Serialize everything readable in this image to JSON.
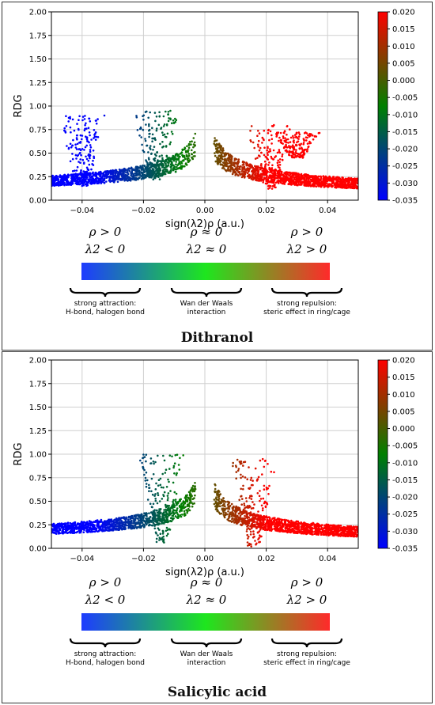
{
  "chart_data": [
    {
      "type": "scatter",
      "title": "Dithranol",
      "xlabel": "sign(λ2)ρ (a.u.)",
      "ylabel": "RDG",
      "xlim": [
        -0.05,
        0.05
      ],
      "ylim": [
        0,
        2
      ],
      "x_ticks": [
        "−0.04",
        "−0.02",
        "0.00",
        "0.02",
        "0.04"
      ],
      "y_ticks": [
        "0.00",
        "0.25",
        "0.50",
        "0.75",
        "1.00",
        "1.25",
        "1.50",
        "1.75",
        "2.00"
      ],
      "grid": true,
      "colorbar": {
        "range": [
          -0.035,
          0.02
        ],
        "ticks": [
          "0.020",
          "0.015",
          "0.010",
          "0.005",
          "0.000",
          "-0.005",
          "-0.010",
          "-0.015",
          "-0.020",
          "-0.025",
          "-0.030",
          "-0.035"
        ],
        "colors": [
          "#0000ff",
          "#008000",
          "#ff0000"
        ]
      },
      "spikes": [
        {
          "x": -0.04,
          "ymin": 0.15,
          "ymax": 0.9
        },
        {
          "x": -0.016,
          "ymin": 0.22,
          "ymax": 0.95
        },
        {
          "x": 0.021,
          "ymin": 0.12,
          "ymax": 0.8
        },
        {
          "x": 0.03,
          "ymin": 0.45,
          "ymax": 0.72
        }
      ],
      "legend": {
        "labels": [
          {
            "rho": "ρ > 0",
            "lambda": "λ2 < 0"
          },
          {
            "rho": "ρ ≈ 0",
            "lambda": "λ2 ≈ 0"
          },
          {
            "rho": "ρ > 0",
            "lambda": "λ2 > 0"
          }
        ],
        "braces": [
          {
            "line1": "strong attraction:",
            "line2": "H-bond, halogen bond"
          },
          {
            "line1": "Wan der Waals",
            "line2": "interaction"
          },
          {
            "line1": "strong repulsion:",
            "line2": "steric effect in ring/cage"
          }
        ]
      }
    },
    {
      "type": "scatter",
      "title": "Salicylic acid",
      "xlabel": "sign(λ2)ρ (a.u.)",
      "ylabel": "RDG",
      "xlim": [
        -0.05,
        0.05
      ],
      "ylim": [
        0,
        2
      ],
      "x_ticks": [
        "−0.04",
        "−0.02",
        "0.00",
        "0.02",
        "0.04"
      ],
      "y_ticks": [
        "0.00",
        "0.25",
        "0.50",
        "0.75",
        "1.00",
        "1.25",
        "1.50",
        "1.75",
        "2.00"
      ],
      "grid": true,
      "colorbar": {
        "range": [
          -0.035,
          0.02
        ],
        "ticks": [
          "0.020",
          "0.015",
          "0.010",
          "0.005",
          "0.000",
          "-0.005",
          "-0.010",
          "-0.015",
          "-0.020",
          "-0.025",
          "-0.030",
          "-0.035"
        ],
        "colors": [
          "#0000ff",
          "#008000",
          "#ff0000"
        ]
      },
      "spikes": [
        {
          "x": -0.014,
          "ymin": 0.05,
          "ymax": 1.0
        },
        {
          "x": 0.016,
          "ymin": 0.02,
          "ymax": 0.95
        }
      ],
      "legend": {
        "labels": [
          {
            "rho": "ρ > 0",
            "lambda": "λ2 < 0"
          },
          {
            "rho": "ρ ≈ 0",
            "lambda": "λ2 ≈ 0"
          },
          {
            "rho": "ρ > 0",
            "lambda": "λ2 > 0"
          }
        ],
        "braces": [
          {
            "line1": "strong attraction:",
            "line2": "H-bond, halogen bond"
          },
          {
            "line1": "Wan der Waals",
            "line2": "interaction"
          },
          {
            "line1": "strong repulsion:",
            "line2": "steric effect in ring/cage"
          }
        ]
      }
    }
  ]
}
